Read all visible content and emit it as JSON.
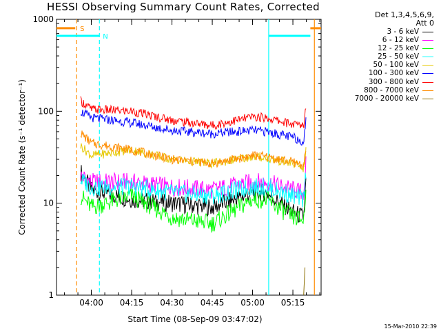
{
  "title": "HESSI Observing Summary Count Rates, Corrected",
  "detector_info": {
    "line1": "Det 1,3,4,5,6,9,",
    "line2": "Att 0"
  },
  "timestamp": "15-Mar-2010 22:39",
  "chart_data": {
    "type": "line",
    "title": "HESSI Observing Summary Count Rates, Corrected",
    "xlabel": "Start Time (08-Sep-09 03:47:02)",
    "ylabel": "Corrected Count Rate (s⁻¹ detector⁻¹)",
    "y_scale": "log",
    "ylim": [
      1,
      1000
    ],
    "y_ticks": [
      "1",
      "10",
      "100",
      "1000"
    ],
    "x_range": [
      "03:47:02",
      "05:25:30"
    ],
    "x_ticks": [
      "04:00",
      "04:15",
      "04:30",
      "04:45",
      "05:00",
      "05:15"
    ],
    "series": [
      {
        "name": "3 - 6 keV",
        "color": "#000000",
        "x": [
          "03:56",
          "04:00",
          "04:15",
          "04:30",
          "04:45",
          "05:00",
          "05:05",
          "05:15",
          "05:19",
          "05:20"
        ],
        "values": [
          22,
          14,
          11,
          10,
          9,
          13,
          13,
          8,
          7,
          20
        ]
      },
      {
        "name": "6 - 12 keV",
        "color": "#ff00ff",
        "x": [
          "03:56",
          "04:00",
          "04:15",
          "04:30",
          "04:45",
          "05:00",
          "05:05",
          "05:15",
          "05:19",
          "05:20"
        ],
        "values": [
          20,
          17,
          17,
          15,
          14,
          17,
          17,
          14,
          13,
          30
        ]
      },
      {
        "name": "12 - 25 keV",
        "color": "#00ff00",
        "x": [
          "03:56",
          "04:00",
          "04:15",
          "04:30",
          "04:45",
          "05:00",
          "05:05",
          "05:15",
          "05:19",
          "05:20"
        ],
        "values": [
          12,
          9,
          12,
          7,
          6,
          11,
          11,
          7,
          6.5,
          15
        ]
      },
      {
        "name": "25 - 50 keV",
        "color": "#00ffff",
        "x": [
          "03:56",
          "04:00",
          "04:15",
          "04:30",
          "04:45",
          "05:00",
          "05:05",
          "05:15",
          "05:19",
          "05:20"
        ],
        "values": [
          18,
          15,
          15,
          13,
          12,
          15,
          15,
          12,
          11,
          25
        ]
      },
      {
        "name": "50 - 100 keV",
        "color": "#e6c800",
        "x": [
          "03:56",
          "04:00",
          "04:15",
          "04:30",
          "04:45",
          "05:00",
          "05:05",
          "05:15",
          "05:19",
          "05:20"
        ],
        "values": [
          42,
          33,
          38,
          30,
          27,
          32,
          31,
          27,
          24,
          40
        ]
      },
      {
        "name": "100 - 300 keV",
        "color": "#0000ff",
        "x": [
          "03:56",
          "04:00",
          "04:15",
          "04:30",
          "04:45",
          "05:00",
          "05:05",
          "05:15",
          "05:19",
          "05:20"
        ],
        "values": [
          100,
          85,
          75,
          62,
          57,
          62,
          60,
          52,
          47,
          85
        ]
      },
      {
        "name": "300 - 800 keV",
        "color": "#ff0000",
        "x": [
          "03:56",
          "04:00",
          "04:15",
          "04:30",
          "04:45",
          "05:00",
          "05:05",
          "05:15",
          "05:19",
          "05:20"
        ],
        "values": [
          130,
          105,
          100,
          80,
          70,
          87,
          85,
          72,
          70,
          120
        ]
      },
      {
        "name": "800 - 7000 keV",
        "color": "#ff8c00",
        "x": [
          "03:56",
          "04:00",
          "04:15",
          "04:30",
          "04:45",
          "05:00",
          "05:05",
          "05:15",
          "05:19",
          "05:20"
        ],
        "values": [
          58,
          45,
          38,
          30,
          27,
          33,
          32,
          28,
          26,
          40
        ]
      },
      {
        "name": "7000 - 20000 keV",
        "color": "#8c6e00",
        "x": [
          "05:19",
          "05:19:30"
        ],
        "values": [
          1,
          2
        ]
      }
    ],
    "markers": [
      {
        "label": "S",
        "color": "#ff8c00",
        "time": "03:54:30",
        "bars": [
          [
            "03:47:02",
            "03:54:00"
          ],
          [
            "05:21:30",
            "05:25:30"
          ]
        ],
        "level": 800,
        "right_line": "05:23"
      },
      {
        "label": "N",
        "color": "#00ffff",
        "time": "04:03",
        "bars": [
          [
            "03:47:02",
            "04:03"
          ],
          [
            "05:06",
            "05:21:30"
          ]
        ],
        "level": 660,
        "right_line": "05:06"
      }
    ],
    "grid": false
  }
}
